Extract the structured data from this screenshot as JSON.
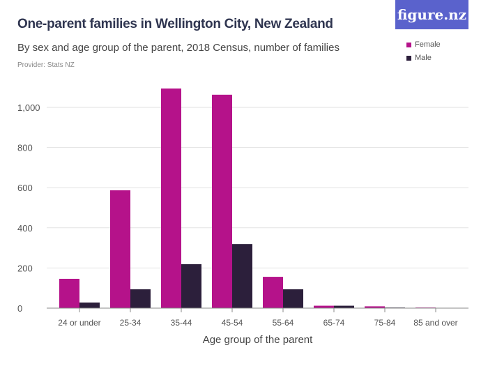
{
  "logo": "figure.nz",
  "chart_data": {
    "type": "bar",
    "title": "One-parent families in Wellington City, New Zealand",
    "subtitle": "By sex and age group of the parent, 2018 Census, number of families",
    "provider": "Provider: Stats NZ",
    "xlabel": "Age group of the parent",
    "ylabel": "",
    "ylim": [
      0,
      1100
    ],
    "yticks": [
      0,
      200,
      400,
      600,
      800,
      1000
    ],
    "ytick_labels": [
      "0",
      "200",
      "400",
      "600",
      "800",
      "1,000"
    ],
    "grid": true,
    "legend_position": "top-right",
    "categories": [
      "24 or under",
      "25-34",
      "35-44",
      "45-54",
      "55-64",
      "65-74",
      "75-84",
      "85 and over"
    ],
    "series": [
      {
        "name": "Female",
        "color": "#b5128a",
        "values": [
          146,
          587,
          1094,
          1063,
          156,
          12,
          9,
          3
        ]
      },
      {
        "name": "Male",
        "color": "#2c1f3b",
        "values": [
          28,
          94,
          219,
          319,
          94,
          12,
          3,
          0
        ]
      }
    ]
  }
}
